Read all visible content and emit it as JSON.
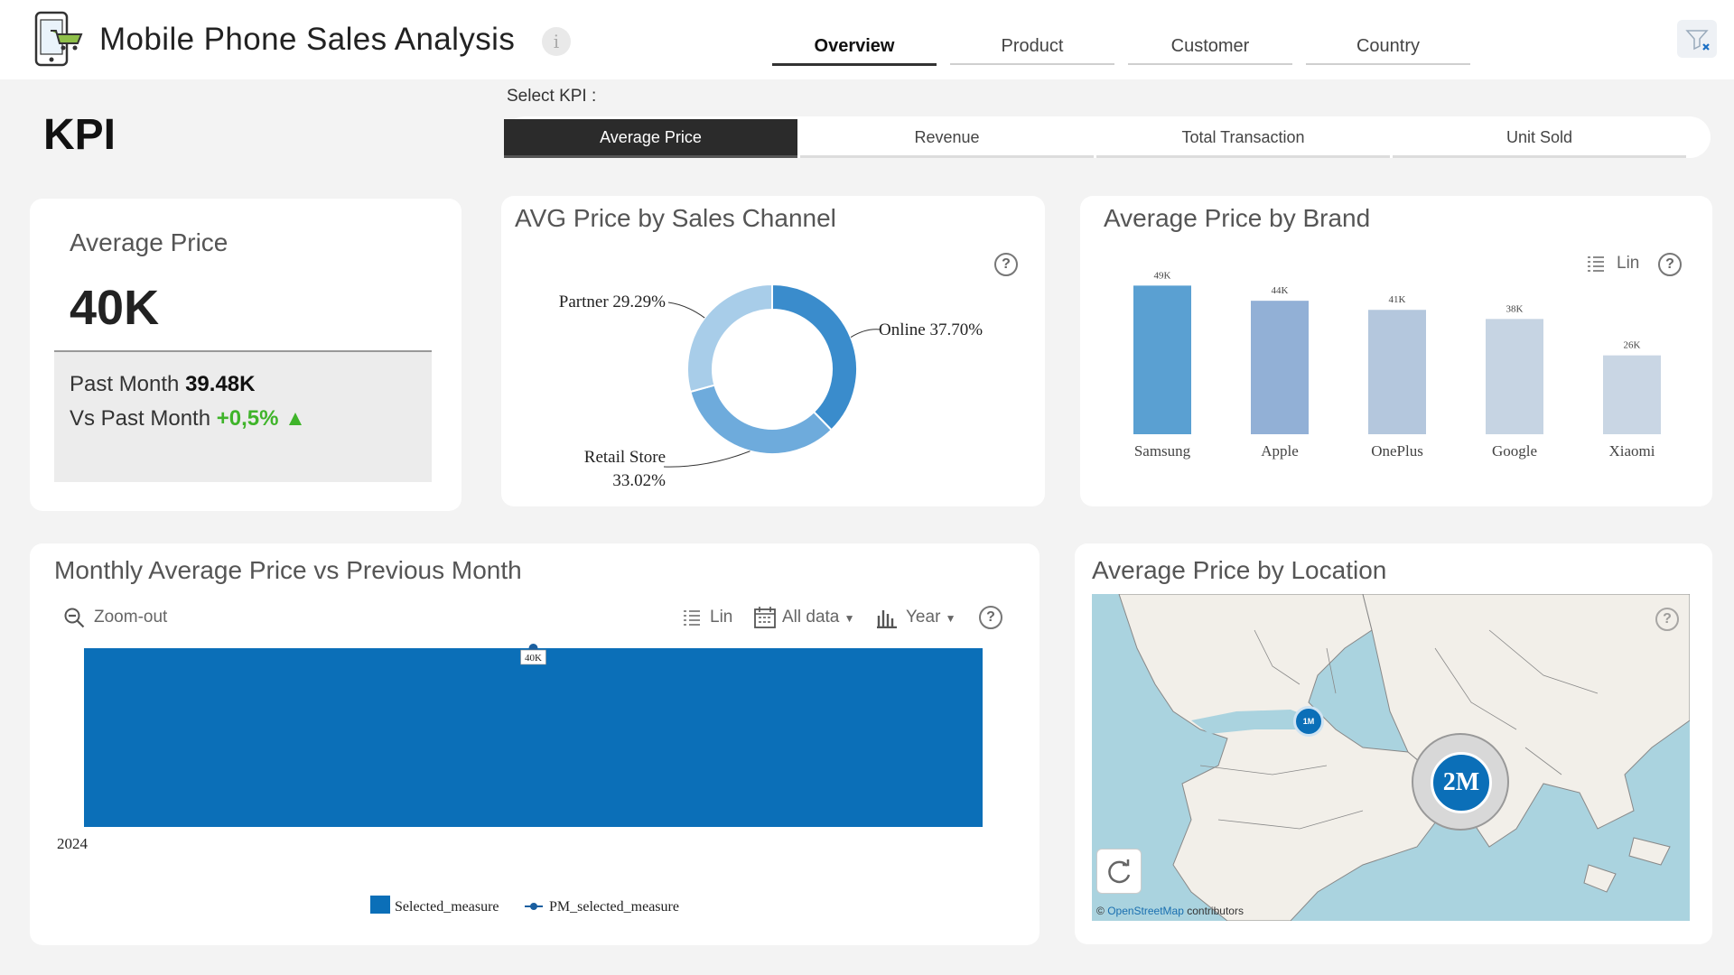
{
  "header": {
    "title": "Mobile Phone Sales Analysis",
    "info_icon": "i",
    "tabs": [
      {
        "label": "Overview",
        "active": true
      },
      {
        "label": "Product",
        "active": false
      },
      {
        "label": "Customer",
        "active": false
      },
      {
        "label": "Country",
        "active": false
      }
    ]
  },
  "kpi_section": {
    "heading": "KPI",
    "select_label": "Select KPI :",
    "options": [
      {
        "label": "Average Price",
        "active": true
      },
      {
        "label": "Revenue",
        "active": false
      },
      {
        "label": "Total Transaction",
        "active": false
      },
      {
        "label": "Unit Sold",
        "active": false
      }
    ]
  },
  "kpi_card": {
    "title": "Average Price",
    "value": "40K",
    "past_month_label": "Past Month",
    "past_month_value": "39.48K",
    "vs_label": "Vs Past Month",
    "vs_value": "+0,5%",
    "trend_icon": "▲"
  },
  "help_icon": "?",
  "donut_card": {
    "title": "AVG Price by Sales Channel"
  },
  "brand_card": {
    "title": "Average Price by Brand",
    "scale_label": "Lin"
  },
  "monthly_card": {
    "title": "Monthly Average Price vs Previous Month",
    "zoom_label": "Zoom-out",
    "scale_label": "Lin",
    "range_label": "All data",
    "period_label": "Year"
  },
  "map_card": {
    "title": "Average Price by Location",
    "attribution_link": "OpenStreetMap",
    "attribution_rest": "contributors",
    "copyright": "©",
    "bubbles": [
      {
        "label": "1M",
        "region": "Mediterranean"
      },
      {
        "label": "2M",
        "region": "India"
      }
    ]
  },
  "colors": {
    "accent": "#0b6fb8",
    "active_tab": "#2b2b2b",
    "positive": "#3fb42a"
  },
  "chart_data": [
    {
      "type": "pie",
      "variant": "donut",
      "categories": [
        "Online",
        "Retail Store",
        "Partner"
      ],
      "values": [
        37.7,
        33.02,
        29.29
      ],
      "labels": [
        "Online 37.70%",
        "Retail Store 33.02%",
        "Partner 29.29%"
      ],
      "colors": [
        "#3a8ccc",
        "#6eabdc",
        "#a8cde9"
      ]
    },
    {
      "type": "bar",
      "categories": [
        "Samsung",
        "Apple",
        "OnePlus",
        "Google",
        "Xiaomi"
      ],
      "values": [
        49,
        44,
        41,
        38,
        26
      ],
      "data_labels": [
        "49K",
        "44K",
        "41K",
        "38K",
        "26K"
      ],
      "colors": [
        "#5aa0d2",
        "#92b0d6",
        "#b4c7dd",
        "#c6d4e3",
        "#c9d6e4"
      ],
      "ylim": [
        0,
        50
      ]
    },
    {
      "type": "bar",
      "categories": [
        "2024"
      ],
      "series": [
        {
          "name": "Selected_measure",
          "values": [
            40
          ],
          "kind": "bar"
        },
        {
          "name": "PM_selected_measure",
          "values": [
            40
          ],
          "kind": "line"
        }
      ],
      "data_labels": [
        "40K"
      ],
      "ylim": [
        0,
        40
      ]
    }
  ]
}
